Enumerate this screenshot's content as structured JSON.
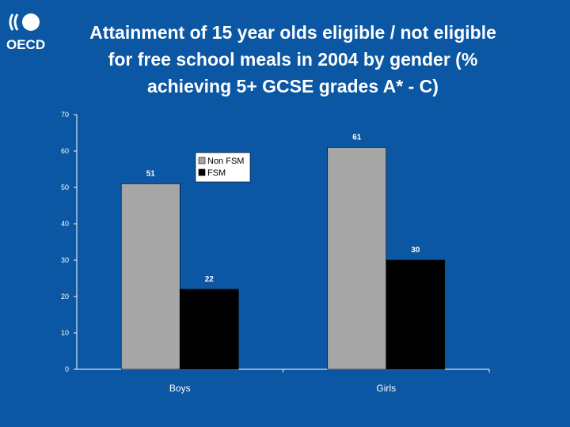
{
  "logo": {
    "text": "OECD",
    "icon": "oecd-logo-icon"
  },
  "title_lines": [
    "Attainment of 15 year olds eligible / not eligible",
    "for free school meals in 2004 by gender (%",
    "achieving 5+ GCSE grades A* - C)"
  ],
  "chart_data": {
    "type": "bar",
    "title": "Attainment of 15 year olds eligible / not eligible for free school meals in 2004 by gender (% achieving 5+ GCSE grades A* - C)",
    "categories": [
      "Boys",
      "Girls"
    ],
    "series": [
      {
        "name": "Non FSM",
        "values": [
          51,
          61
        ],
        "color": "#a6a6a6"
      },
      {
        "name": "FSM",
        "values": [
          22,
          30
        ],
        "color": "#000000"
      }
    ],
    "ylim": [
      0,
      70
    ],
    "yticks": [
      0,
      10,
      20,
      30,
      40,
      50,
      60,
      70
    ],
    "xlabel": "",
    "ylabel": "",
    "grid": false,
    "legend": "top-left inside plot",
    "data_labels": true,
    "background_color": "#0b57a3",
    "axis_color": "#ffffff"
  }
}
